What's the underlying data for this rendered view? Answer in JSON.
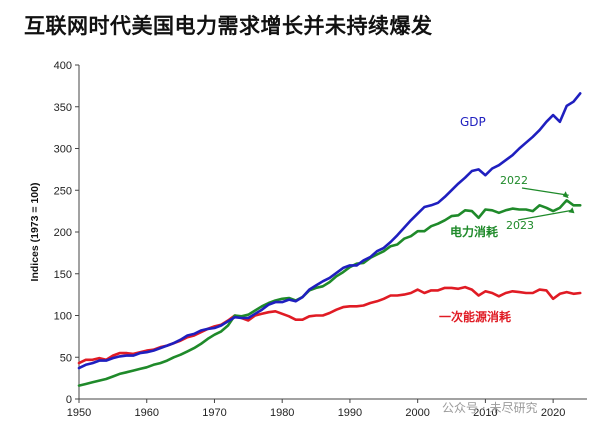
{
  "chart_data": {
    "type": "line",
    "title": "互联网时代美国电力需求增长并未持续爆发",
    "xlabel": "",
    "ylabel": "Indices (1973 = 100)",
    "xlim": [
      1950,
      2025
    ],
    "ylim": [
      0,
      400
    ],
    "x_ticks": [
      1950,
      1960,
      1970,
      1980,
      1990,
      2000,
      2010,
      2020
    ],
    "y_ticks": [
      0,
      50,
      100,
      150,
      200,
      250,
      300,
      350,
      400
    ],
    "grid": false,
    "series": [
      {
        "name": "GDP",
        "color": "#1f1fbf",
        "points": [
          [
            1950,
            37
          ],
          [
            1951,
            41
          ],
          [
            1952,
            43
          ],
          [
            1953,
            46
          ],
          [
            1954,
            46
          ],
          [
            1955,
            49
          ],
          [
            1956,
            51
          ],
          [
            1957,
            52
          ],
          [
            1958,
            52
          ],
          [
            1959,
            55
          ],
          [
            1960,
            56
          ],
          [
            1961,
            58
          ],
          [
            1962,
            61
          ],
          [
            1963,
            64
          ],
          [
            1964,
            67
          ],
          [
            1965,
            71
          ],
          [
            1966,
            76
          ],
          [
            1967,
            78
          ],
          [
            1968,
            82
          ],
          [
            1969,
            84
          ],
          [
            1970,
            85
          ],
          [
            1971,
            88
          ],
          [
            1972,
            93
          ],
          [
            1973,
            98
          ],
          [
            1974,
            97
          ],
          [
            1975,
            97
          ],
          [
            1976,
            102
          ],
          [
            1977,
            107
          ],
          [
            1978,
            113
          ],
          [
            1979,
            116
          ],
          [
            1980,
            116
          ],
          [
            1981,
            119
          ],
          [
            1982,
            117
          ],
          [
            1983,
            122
          ],
          [
            1984,
            131
          ],
          [
            1985,
            136
          ],
          [
            1986,
            141
          ],
          [
            1987,
            145
          ],
          [
            1988,
            151
          ],
          [
            1989,
            157
          ],
          [
            1990,
            160
          ],
          [
            1991,
            160
          ],
          [
            1992,
            166
          ],
          [
            1993,
            170
          ],
          [
            1994,
            177
          ],
          [
            1995,
            181
          ],
          [
            1996,
            188
          ],
          [
            1997,
            196
          ],
          [
            1998,
            205
          ],
          [
            1999,
            214
          ],
          [
            2000,
            222
          ],
          [
            2001,
            230
          ],
          [
            2002,
            232
          ],
          [
            2003,
            235
          ],
          [
            2004,
            242
          ],
          [
            2005,
            250
          ],
          [
            2006,
            258
          ],
          [
            2007,
            265
          ],
          [
            2008,
            273
          ],
          [
            2009,
            275
          ],
          [
            2010,
            268
          ],
          [
            2011,
            276
          ],
          [
            2012,
            280
          ],
          [
            2013,
            286
          ],
          [
            2014,
            292
          ],
          [
            2015,
            300
          ],
          [
            2016,
            307
          ],
          [
            2017,
            314
          ],
          [
            2018,
            322
          ],
          [
            2019,
            332
          ],
          [
            2020,
            340
          ],
          [
            2021,
            332
          ],
          [
            2022,
            351
          ],
          [
            2023,
            356
          ],
          [
            2024,
            366
          ]
        ]
      },
      {
        "name": "电力消耗",
        "color": "#1f8a2a",
        "points": [
          [
            1950,
            16
          ],
          [
            1951,
            18
          ],
          [
            1952,
            20
          ],
          [
            1953,
            22
          ],
          [
            1954,
            24
          ],
          [
            1955,
            27
          ],
          [
            1956,
            30
          ],
          [
            1957,
            32
          ],
          [
            1958,
            34
          ],
          [
            1959,
            36
          ],
          [
            1960,
            38
          ],
          [
            1961,
            41
          ],
          [
            1962,
            43
          ],
          [
            1963,
            46
          ],
          [
            1964,
            50
          ],
          [
            1965,
            53
          ],
          [
            1966,
            57
          ],
          [
            1967,
            61
          ],
          [
            1968,
            66
          ],
          [
            1969,
            72
          ],
          [
            1970,
            77
          ],
          [
            1971,
            81
          ],
          [
            1972,
            88
          ],
          [
            1973,
            100
          ],
          [
            1974,
            99
          ],
          [
            1975,
            101
          ],
          [
            1976,
            106
          ],
          [
            1977,
            111
          ],
          [
            1978,
            115
          ],
          [
            1979,
            118
          ],
          [
            1980,
            120
          ],
          [
            1981,
            121
          ],
          [
            1982,
            118
          ],
          [
            1983,
            122
          ],
          [
            1984,
            130
          ],
          [
            1985,
            133
          ],
          [
            1986,
            135
          ],
          [
            1987,
            140
          ],
          [
            1988,
            147
          ],
          [
            1989,
            152
          ],
          [
            1990,
            158
          ],
          [
            1991,
            162
          ],
          [
            1992,
            163
          ],
          [
            1993,
            169
          ],
          [
            1994,
            173
          ],
          [
            1995,
            177
          ],
          [
            1996,
            183
          ],
          [
            1997,
            185
          ],
          [
            1998,
            192
          ],
          [
            1999,
            195
          ],
          [
            2000,
            201
          ],
          [
            2001,
            201
          ],
          [
            2002,
            207
          ],
          [
            2003,
            210
          ],
          [
            2004,
            214
          ],
          [
            2005,
            219
          ],
          [
            2006,
            220
          ],
          [
            2007,
            226
          ],
          [
            2008,
            225
          ],
          [
            2009,
            217
          ],
          [
            2010,
            227
          ],
          [
            2011,
            226
          ],
          [
            2012,
            223
          ],
          [
            2013,
            226
          ],
          [
            2014,
            228
          ],
          [
            2015,
            227
          ],
          [
            2016,
            227
          ],
          [
            2017,
            225
          ],
          [
            2018,
            232
          ],
          [
            2019,
            229
          ],
          [
            2020,
            225
          ],
          [
            2021,
            229
          ],
          [
            2022,
            238
          ],
          [
            2023,
            232
          ],
          [
            2024,
            232
          ]
        ]
      },
      {
        "name": "一次能源消耗",
        "color": "#e01b24",
        "points": [
          [
            1950,
            43
          ],
          [
            1951,
            47
          ],
          [
            1952,
            47
          ],
          [
            1953,
            49
          ],
          [
            1954,
            47
          ],
          [
            1955,
            52
          ],
          [
            1956,
            55
          ],
          [
            1957,
            55
          ],
          [
            1958,
            54
          ],
          [
            1959,
            56
          ],
          [
            1960,
            58
          ],
          [
            1961,
            59
          ],
          [
            1962,
            62
          ],
          [
            1963,
            64
          ],
          [
            1964,
            67
          ],
          [
            1965,
            70
          ],
          [
            1966,
            74
          ],
          [
            1967,
            76
          ],
          [
            1968,
            80
          ],
          [
            1969,
            84
          ],
          [
            1970,
            87
          ],
          [
            1971,
            89
          ],
          [
            1972,
            94
          ],
          [
            1973,
            100
          ],
          [
            1974,
            97
          ],
          [
            1975,
            94
          ],
          [
            1976,
            100
          ],
          [
            1977,
            102
          ],
          [
            1978,
            104
          ],
          [
            1979,
            105
          ],
          [
            1980,
            102
          ],
          [
            1981,
            99
          ],
          [
            1982,
            95
          ],
          [
            1983,
            95
          ],
          [
            1984,
            99
          ],
          [
            1985,
            100
          ],
          [
            1986,
            100
          ],
          [
            1987,
            103
          ],
          [
            1988,
            107
          ],
          [
            1989,
            110
          ],
          [
            1990,
            111
          ],
          [
            1991,
            111
          ],
          [
            1992,
            112
          ],
          [
            1993,
            115
          ],
          [
            1994,
            117
          ],
          [
            1995,
            120
          ],
          [
            1996,
            124
          ],
          [
            1997,
            124
          ],
          [
            1998,
            125
          ],
          [
            1999,
            127
          ],
          [
            2000,
            131
          ],
          [
            2001,
            127
          ],
          [
            2002,
            130
          ],
          [
            2003,
            130
          ],
          [
            2004,
            133
          ],
          [
            2005,
            133
          ],
          [
            2006,
            132
          ],
          [
            2007,
            134
          ],
          [
            2008,
            131
          ],
          [
            2009,
            124
          ],
          [
            2010,
            129
          ],
          [
            2011,
            127
          ],
          [
            2012,
            123
          ],
          [
            2013,
            127
          ],
          [
            2014,
            129
          ],
          [
            2015,
            128
          ],
          [
            2016,
            127
          ],
          [
            2017,
            127
          ],
          [
            2018,
            131
          ],
          [
            2019,
            130
          ],
          [
            2020,
            120
          ],
          [
            2021,
            126
          ],
          [
            2022,
            128
          ],
          [
            2023,
            126
          ],
          [
            2024,
            127
          ]
        ]
      }
    ],
    "annotations": [
      {
        "text": "GDP",
        "color": "#1f1fbf"
      },
      {
        "text": "2022",
        "color": "#1f8a2a"
      },
      {
        "text": "电力消耗",
        "color": "#1f8a2a"
      },
      {
        "text": "2023",
        "color": "#1f8a2a"
      },
      {
        "text": "一次能源消耗",
        "color": "#e01b24"
      }
    ],
    "watermark": "公众号 · 未尽研究"
  }
}
